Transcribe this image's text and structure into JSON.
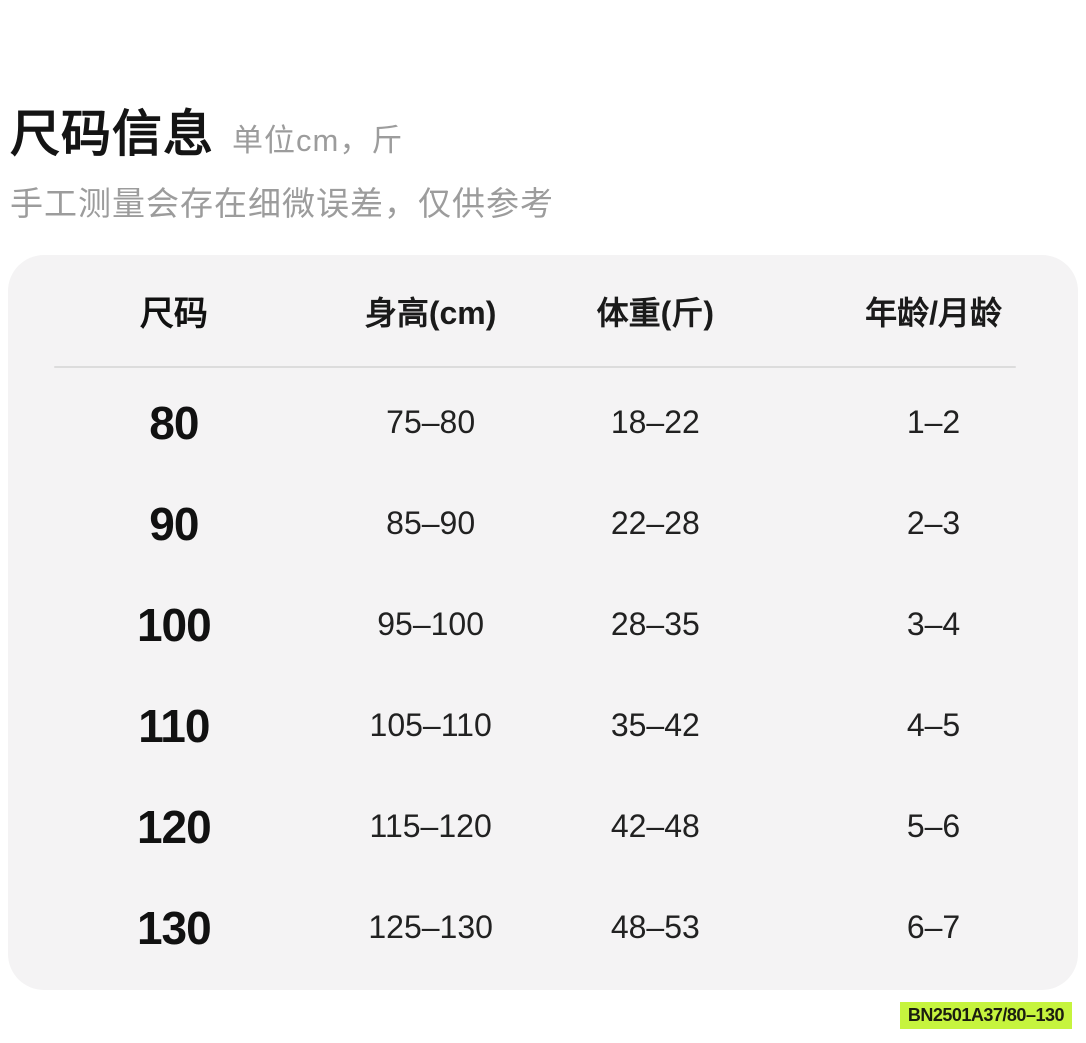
{
  "page": {
    "title": "尺码信息",
    "unit_note": "单位cm，斤",
    "disclaimer": "手工测量会存在细微误差，仅供参考"
  },
  "size_table": {
    "headers": {
      "size": "尺码",
      "height": "身高(cm)",
      "weight": "体重(斤)",
      "age": "年龄/月龄"
    },
    "rows": [
      {
        "size": "80",
        "height": "75–80",
        "weight": "18–22",
        "age": "1–2"
      },
      {
        "size": "90",
        "height": "85–90",
        "weight": "22–28",
        "age": "2–3"
      },
      {
        "size": "100",
        "height": "95–100",
        "weight": "28–35",
        "age": "3–4"
      },
      {
        "size": "110",
        "height": "105–110",
        "weight": "35–42",
        "age": "4–5"
      },
      {
        "size": "120",
        "height": "115–120",
        "weight": "42–48",
        "age": "5–6"
      },
      {
        "size": "130",
        "height": "125–130",
        "weight": "48–53",
        "age": "6–7"
      }
    ]
  },
  "badge": {
    "product_code": "BN2501A37/80–130"
  },
  "colors": {
    "page_bg": "#ffffff",
    "card_bg": "#f4f3f4",
    "divider": "#dcdcdc",
    "title_text": "#141414",
    "muted_text": "#9c9c9c",
    "value_text": "#212121",
    "badge_bg": "#c6f43e",
    "badge_text": "#1b1d10"
  }
}
